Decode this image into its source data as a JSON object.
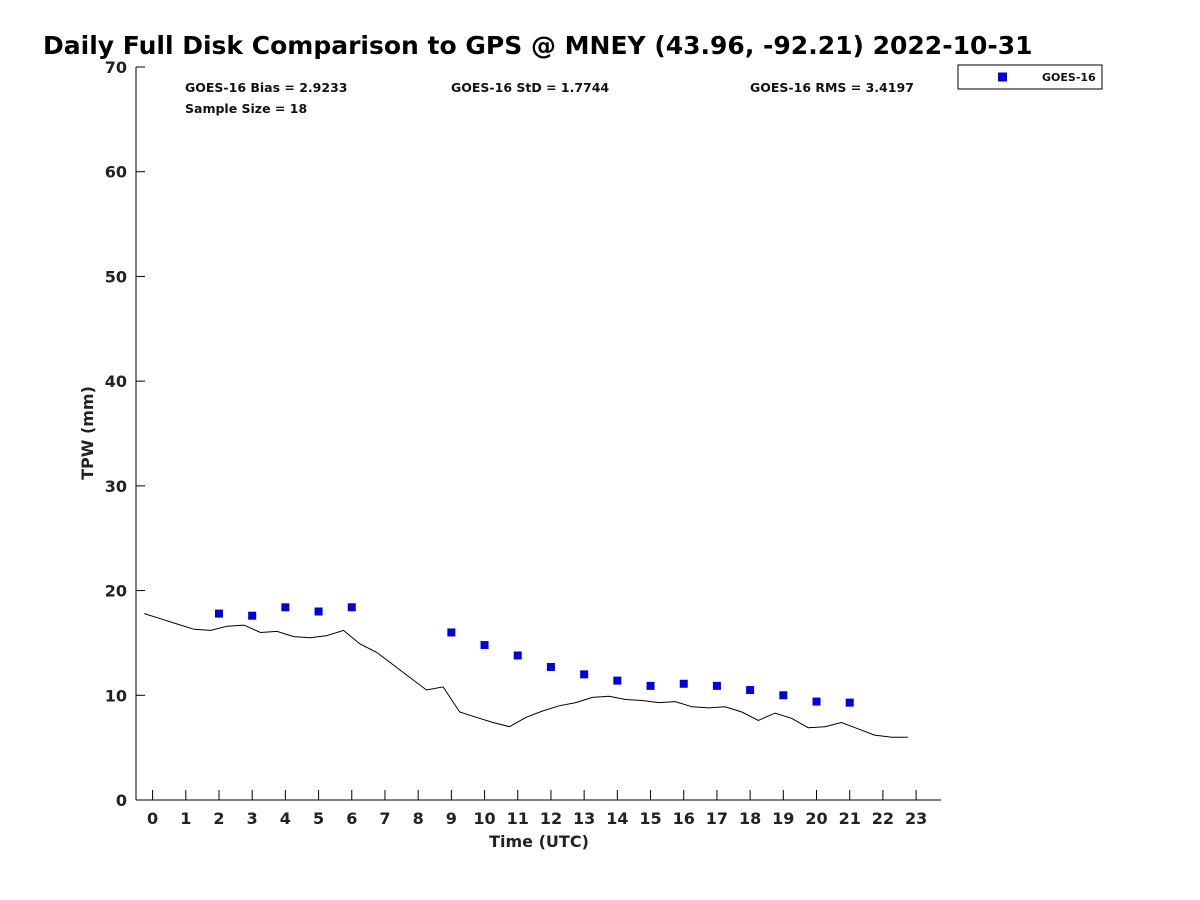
{
  "chart_data": {
    "type": "scatter",
    "title": "Daily Full Disk Comparison to GPS @ MNEY (43.96, -92.21) 2022-10-31",
    "xlabel": "Time (UTC)",
    "ylabel": "TPW (mm)",
    "xlim": [
      -0.5,
      23.75
    ],
    "ylim": [
      0,
      70
    ],
    "x_ticks": [
      "0",
      "1",
      "2",
      "3",
      "4",
      "5",
      "6",
      "7",
      "8",
      "9",
      "10",
      "11",
      "12",
      "13",
      "14",
      "15",
      "16",
      "17",
      "18",
      "19",
      "20",
      "21",
      "22",
      "23"
    ],
    "y_ticks": [
      "0",
      "10",
      "20",
      "30",
      "40",
      "50",
      "60",
      "70"
    ],
    "grid": false,
    "legend_position": "top-right",
    "stats": {
      "bias": "GOES-16 Bias = 2.9233",
      "std": "GOES-16 StD = 1.7744",
      "rms": "GOES-16 RMS = 3.4197",
      "sample": "Sample Size = 18"
    },
    "series": [
      {
        "name": "GOES-16",
        "kind": "scatter",
        "color": "#0000dd",
        "marker": "square",
        "x": [
          2,
          3,
          4,
          5,
          6,
          9,
          10,
          11,
          12,
          13,
          14,
          15,
          16,
          17,
          18,
          19,
          20,
          21
        ],
        "y": [
          17.8,
          17.6,
          18.4,
          18.0,
          18.4,
          16.0,
          14.8,
          13.8,
          12.7,
          12.0,
          11.4,
          10.9,
          11.1,
          10.9,
          10.5,
          10.0,
          9.4,
          9.3
        ]
      },
      {
        "kind": "line",
        "color": "#000000",
        "x": [
          -0.25,
          0.25,
          0.75,
          1.25,
          1.75,
          2.25,
          2.75,
          3.25,
          3.75,
          4.25,
          4.75,
          5.25,
          5.75,
          6.25,
          6.75,
          7.25,
          7.75,
          8.25,
          8.75,
          9.25,
          9.75,
          10.25,
          10.75,
          11.25,
          11.75,
          12.25,
          12.75,
          13.25,
          13.75,
          14.25,
          14.75,
          15.25,
          15.75,
          16.25,
          16.75,
          17.25,
          17.75,
          18.25,
          18.75,
          19.25,
          19.75,
          20.25,
          20.75,
          21.25,
          21.75,
          22.25,
          22.75
        ],
        "y": [
          17.8,
          17.3,
          16.8,
          16.3,
          16.2,
          16.6,
          16.7,
          16.0,
          16.1,
          15.6,
          15.5,
          15.7,
          16.2,
          14.9,
          14.1,
          12.9,
          11.7,
          10.5,
          10.8,
          8.4,
          7.9,
          7.4,
          7.0,
          7.9,
          8.5,
          9.0,
          9.3,
          9.8,
          9.9,
          9.6,
          9.5,
          9.3,
          9.4,
          8.9,
          8.8,
          8.9,
          8.4,
          7.6,
          8.3,
          7.8,
          6.9,
          7.0,
          7.4,
          6.8,
          6.2,
          6.0,
          6.0
        ]
      }
    ]
  }
}
